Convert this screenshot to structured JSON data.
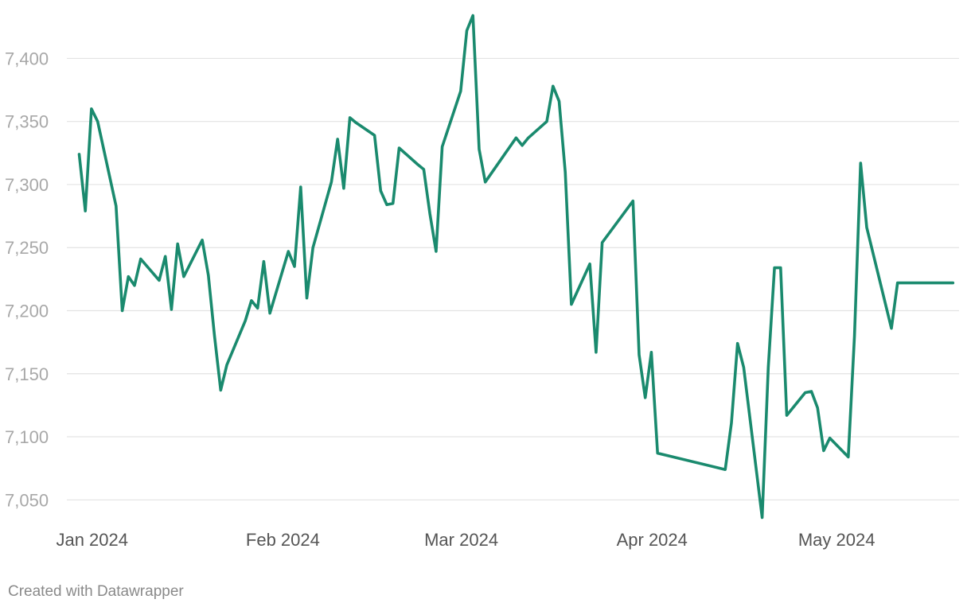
{
  "chart_data": {
    "type": "line",
    "title": "",
    "xlabel": "",
    "ylabel": "",
    "ylim": [
      7030,
      7440
    ],
    "xlim": [
      "2023-12-31",
      "2024-05-24"
    ],
    "y_ticks": [
      {
        "value": 7050,
        "label": "7,050"
      },
      {
        "value": 7100,
        "label": "7,100"
      },
      {
        "value": 7150,
        "label": "7,150"
      },
      {
        "value": 7200,
        "label": "7,200"
      },
      {
        "value": 7250,
        "label": "7,250"
      },
      {
        "value": 7300,
        "label": "7,300"
      },
      {
        "value": 7350,
        "label": "7,350"
      },
      {
        "value": 7400,
        "label": "7,400"
      }
    ],
    "x_ticks": [
      {
        "date": "2024-01-01",
        "label": "Jan 2024"
      },
      {
        "date": "2024-02-01",
        "label": "Feb 2024"
      },
      {
        "date": "2024-03-01",
        "label": "Mar 2024"
      },
      {
        "date": "2024-04-01",
        "label": "Apr 2024"
      },
      {
        "date": "2024-05-01",
        "label": "May 2024"
      }
    ],
    "grid": true,
    "legend": "none",
    "line_color": "#1a8a6e",
    "series": [
      {
        "x": [
          "2024-01-02",
          "2024-01-03",
          "2024-01-04",
          "2024-01-05",
          "2024-01-08",
          "2024-01-09",
          "2024-01-10",
          "2024-01-11",
          "2024-01-12",
          "2024-01-15",
          "2024-01-16",
          "2024-01-17",
          "2024-01-18",
          "2024-01-19",
          "2024-01-22",
          "2024-01-23",
          "2024-01-24",
          "2024-01-25",
          "2024-01-26",
          "2024-01-29",
          "2024-01-30",
          "2024-01-31",
          "2024-02-01",
          "2024-02-02",
          "2024-02-05",
          "2024-02-06",
          "2024-02-07",
          "2024-02-08",
          "2024-02-09",
          "2024-02-12",
          "2024-02-13",
          "2024-02-14",
          "2024-02-15",
          "2024-02-16",
          "2024-02-19",
          "2024-02-20",
          "2024-02-21",
          "2024-02-22",
          "2024-02-23",
          "2024-02-26",
          "2024-02-27",
          "2024-02-28",
          "2024-02-29",
          "2024-03-01",
          "2024-03-04",
          "2024-03-05",
          "2024-03-06",
          "2024-03-07",
          "2024-03-08",
          "2024-03-13",
          "2024-03-14",
          "2024-03-15",
          "2024-03-18",
          "2024-03-19",
          "2024-03-20",
          "2024-03-21",
          "2024-03-22",
          "2024-03-25",
          "2024-03-26",
          "2024-03-27",
          "2024-04-01",
          "2024-04-02",
          "2024-04-03",
          "2024-04-04",
          "2024-04-05",
          "2024-04-16",
          "2024-04-17",
          "2024-04-18",
          "2024-04-19",
          "2024-04-22",
          "2024-04-23",
          "2024-04-24",
          "2024-04-25",
          "2024-04-26",
          "2024-04-29",
          "2024-04-30",
          "2024-05-01",
          "2024-05-02",
          "2024-05-03",
          "2024-05-06",
          "2024-05-07",
          "2024-05-08",
          "2024-05-09",
          "2024-05-13",
          "2024-05-14",
          "2024-05-15",
          "2024-05-16",
          "2024-05-17",
          "2024-05-20",
          "2024-05-21",
          "2024-05-22",
          "2024-05-23"
        ],
        "y": [
          7324,
          7279,
          7360,
          7350,
          7283,
          7200,
          7227,
          7220,
          7241,
          7224,
          7243,
          7201,
          7253,
          7227,
          7256,
          7228,
          7180,
          7137,
          7157,
          7192,
          7208,
          7202,
          7239,
          7198,
          7247,
          7235,
          7298,
          7210,
          7250,
          7302,
          7336,
          7297,
          7353,
          7349,
          7339,
          7295,
          7284,
          7285,
          7329,
          7316,
          7312,
          7277,
          7247,
          7330,
          7374,
          7422,
          7434,
          7328,
          7302,
          7337,
          7331,
          7337,
          7350,
          7378,
          7366,
          7310,
          7205,
          7237,
          7167,
          7254,
          7287,
          7165,
          7131,
          7167,
          7087,
          7074,
          7111,
          7174,
          7155,
          7036,
          7155,
          7234,
          7234,
          7117,
          7135,
          7136,
          7123,
          7089,
          7099,
          7084,
          7180,
          7317,
          7266,
          7186,
          7222,
          7222,
          7222,
          7222,
          7222,
          7222,
          7222,
          7222
        ]
      }
    ]
  },
  "footer": {
    "credit": "Created with Datawrapper"
  }
}
